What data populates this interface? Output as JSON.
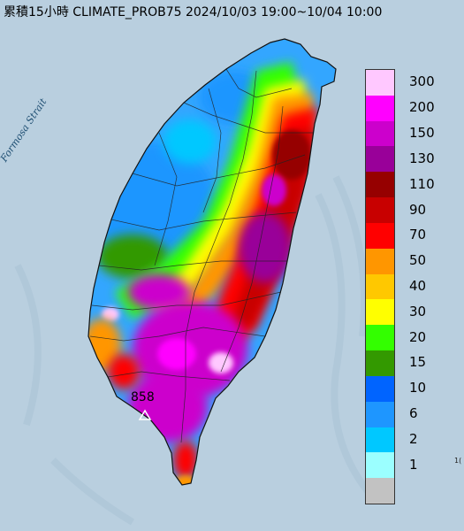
{
  "header": {
    "title": "累積15小時 CLIMATE_PROB75 2024/10/03 19:00~10/04 10:00"
  },
  "map": {
    "strait_label": "Formosa Strait",
    "peak_value": "858",
    "edge_label": "1(",
    "sea_color": "#b9cfdf"
  },
  "legend": {
    "items": [
      {
        "label": "300",
        "color": "#ffc8ff"
      },
      {
        "label": "200",
        "color": "#ff00ff"
      },
      {
        "label": "150",
        "color": "#cc00cc"
      },
      {
        "label": "130",
        "color": "#990099"
      },
      {
        "label": "110",
        "color": "#960000"
      },
      {
        "label": "90",
        "color": "#c80000"
      },
      {
        "label": "70",
        "color": "#ff0000"
      },
      {
        "label": "50",
        "color": "#ff9600"
      },
      {
        "label": "40",
        "color": "#ffc800"
      },
      {
        "label": "30",
        "color": "#ffff00"
      },
      {
        "label": "20",
        "color": "#33ff00"
      },
      {
        "label": "15",
        "color": "#339900"
      },
      {
        "label": "10",
        "color": "#0064ff"
      },
      {
        "label": "6",
        "color": "#1e96ff"
      },
      {
        "label": "2",
        "color": "#00c8ff"
      },
      {
        "label": "1",
        "color": "#9bffff"
      },
      {
        "label": "",
        "color": "#c2c2c2"
      }
    ]
  }
}
